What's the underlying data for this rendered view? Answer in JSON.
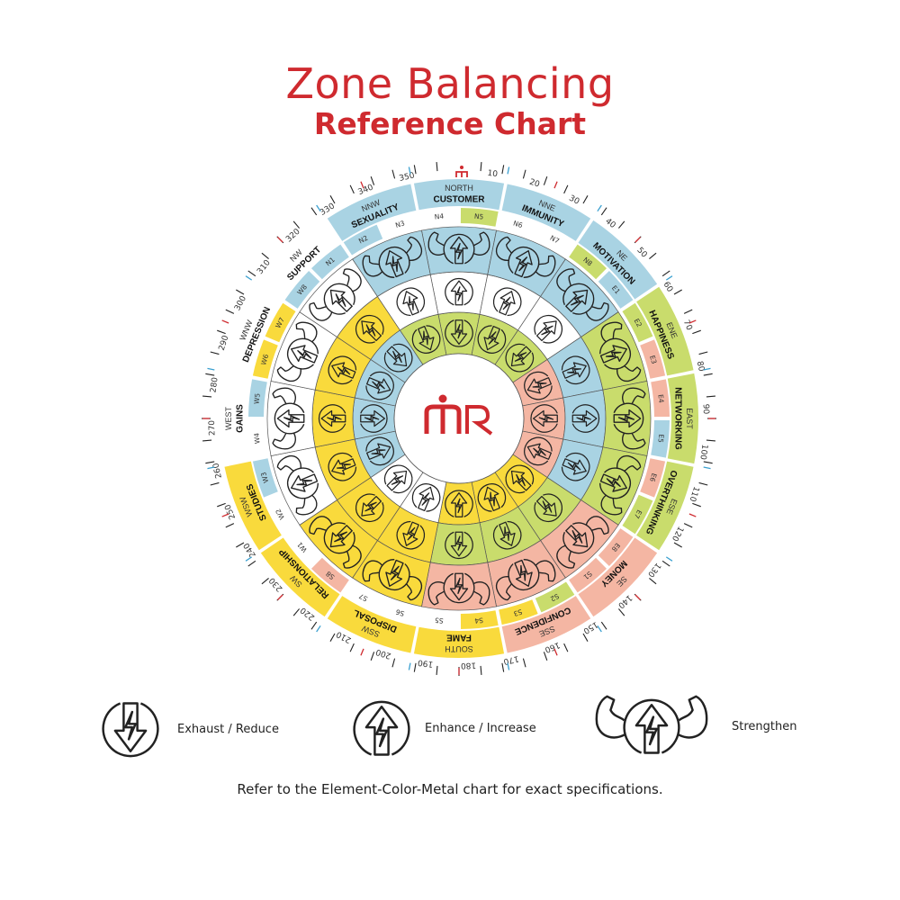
{
  "title": {
    "line1": "Zone Balancing",
    "line2": "Reference Chart"
  },
  "logo_text": "mR",
  "colors": {
    "blue": "#a9d3e3",
    "green": "#c9dc6c",
    "pink": "#f4b6a3",
    "yellow": "#f9da3c",
    "white": "#ffffff",
    "brand_red": "#cf2a2f"
  },
  "zones": [
    {
      "direction": "NORTH",
      "name": "CUSTOMER",
      "band": "blue",
      "strengthen": "blue",
      "enhance": "white",
      "exhaust": "green"
    },
    {
      "direction": "NNE",
      "name": "IMMUNITY",
      "band": "blue",
      "strengthen": "blue",
      "enhance": "white",
      "exhaust": "green"
    },
    {
      "direction": "NE",
      "name": "MOTIVATION",
      "band": "blue",
      "strengthen": "blue",
      "enhance": "white",
      "exhaust": "green"
    },
    {
      "direction": "ENE",
      "name": "HAPPINESS",
      "band": "green",
      "strengthen": "green",
      "enhance": "blue",
      "exhaust": "pink"
    },
    {
      "direction": "EAST",
      "name": "NETWORKING",
      "band": "green",
      "strengthen": "green",
      "enhance": "blue",
      "exhaust": "pink"
    },
    {
      "direction": "ESE",
      "name": "OVERTHINKING",
      "band": "green",
      "strengthen": "green",
      "enhance": "blue",
      "exhaust": "pink"
    },
    {
      "direction": "SE",
      "name": "MONEY",
      "band": "pink",
      "strengthen": "pink",
      "enhance": "green",
      "exhaust": "yellow"
    },
    {
      "direction": "SSE",
      "name": "CONFIDENCE",
      "band": "pink",
      "strengthen": "pink",
      "enhance": "green",
      "exhaust": "yellow"
    },
    {
      "direction": "SOUTH",
      "name": "FAME",
      "band": "yellow",
      "strengthen": "pink",
      "enhance": "green",
      "exhaust": "yellow"
    },
    {
      "direction": "SSW",
      "name": "DISPOSAL",
      "band": "yellow",
      "strengthen": "yellow",
      "enhance": "yellow",
      "exhaust": "white"
    },
    {
      "direction": "SW",
      "name": "RELATIONSHIP",
      "band": "yellow",
      "strengthen": "yellow",
      "enhance": "yellow",
      "exhaust": "white"
    },
    {
      "direction": "WSW",
      "name": "STUDIES",
      "band": "yellow",
      "strengthen": "white",
      "enhance": "yellow",
      "exhaust": "blue"
    },
    {
      "direction": "WEST",
      "name": "GAINS",
      "band": "white",
      "strengthen": "white",
      "enhance": "yellow",
      "exhaust": "blue"
    },
    {
      "direction": "WNW",
      "name": "DEPRESSION",
      "band": "white",
      "strengthen": "white",
      "enhance": "yellow",
      "exhaust": "blue"
    },
    {
      "direction": "NW",
      "name": "SUPPORT",
      "band": "white",
      "strengthen": "white",
      "enhance": "yellow",
      "exhaust": "blue"
    },
    {
      "direction": "NNW",
      "name": "SEXUALITY",
      "band": "blue",
      "strengthen": "blue",
      "enhance": "white",
      "exhaust": "green"
    }
  ],
  "padas": [
    {
      "label": "N1",
      "color": "blue"
    },
    {
      "label": "N2",
      "color": "blue"
    },
    {
      "label": "N3",
      "color": "white"
    },
    {
      "label": "N4",
      "color": "white"
    },
    {
      "label": "N5",
      "color": "green"
    },
    {
      "label": "N6",
      "color": "white"
    },
    {
      "label": "N7",
      "color": "white"
    },
    {
      "label": "N8",
      "color": "green"
    },
    {
      "label": "E1",
      "color": "blue"
    },
    {
      "label": "E2",
      "color": "green"
    },
    {
      "label": "E3",
      "color": "pink"
    },
    {
      "label": "E4",
      "color": "pink"
    },
    {
      "label": "E5",
      "color": "blue"
    },
    {
      "label": "E6",
      "color": "pink"
    },
    {
      "label": "E7",
      "color": "green"
    },
    {
      "label": "E8",
      "color": "pink"
    },
    {
      "label": "S1",
      "color": "pink"
    },
    {
      "label": "S2",
      "color": "green"
    },
    {
      "label": "S3",
      "color": "yellow"
    },
    {
      "label": "S4",
      "color": "yellow"
    },
    {
      "label": "S5",
      "color": "white"
    },
    {
      "label": "S6",
      "color": "white"
    },
    {
      "label": "S7",
      "color": "white"
    },
    {
      "label": "S8",
      "color": "pink"
    },
    {
      "label": "W1",
      "color": "white"
    },
    {
      "label": "W2",
      "color": "white"
    },
    {
      "label": "W3",
      "color": "blue"
    },
    {
      "label": "W4",
      "color": "white"
    },
    {
      "label": "W5",
      "color": "blue"
    },
    {
      "label": "W6",
      "color": "yellow"
    },
    {
      "label": "W7",
      "color": "yellow"
    },
    {
      "label": "W8",
      "color": "blue"
    }
  ],
  "degree_labels": [
    "10",
    "20",
    "30",
    "40",
    "50",
    "60",
    "70",
    "80",
    "90",
    "100",
    "110",
    "120",
    "130",
    "140",
    "150",
    "160",
    "170",
    "180",
    "190",
    "200",
    "210",
    "220",
    "230",
    "240",
    "250",
    "260",
    "270",
    "280",
    "290",
    "300",
    "310",
    "320",
    "330",
    "340",
    "350"
  ],
  "legend": [
    {
      "icon": "exhaust-icon",
      "label": "Exhaust / Reduce"
    },
    {
      "icon": "enhance-icon",
      "label": "Enhance / Increase"
    },
    {
      "icon": "strengthen-icon",
      "label": "Strengthen"
    }
  ],
  "footnote": "Refer to the Element-Color-Metal chart for exact specifications."
}
